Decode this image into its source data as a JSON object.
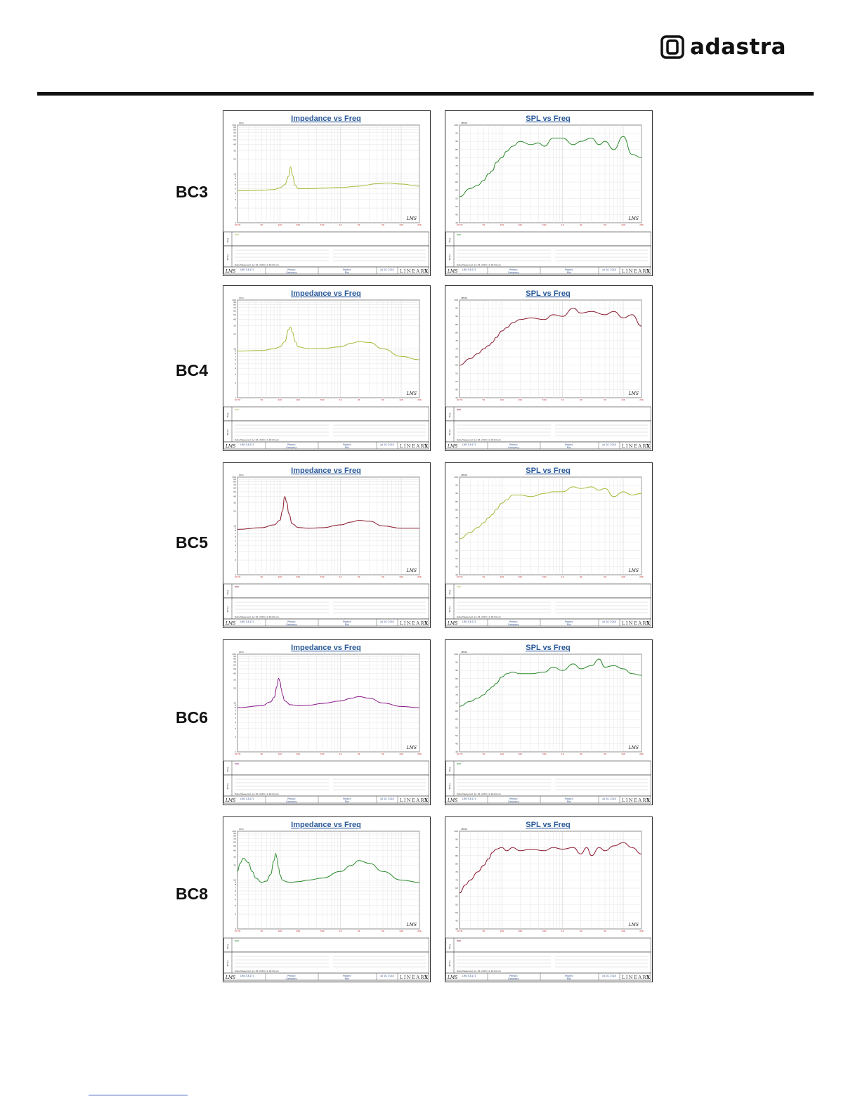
{
  "header": {
    "logo_text": "adastra",
    "brand_color": "#111111"
  },
  "rows": [
    {
      "label": "BC3",
      "top": 0
    },
    {
      "label": "BC4",
      "top": 1
    },
    {
      "label": "BC5",
      "top": 2
    },
    {
      "label": "BC6",
      "top": 3
    },
    {
      "label": "BC8",
      "top": 4
    }
  ],
  "chart_data": [
    {
      "model": "BC3",
      "type": "line",
      "title": "Impedance vs Freq",
      "ylabel": "Ohm",
      "xscale": "log",
      "yscale": "log",
      "xlim": [
        20,
        20000
      ],
      "ylim": [
        1,
        100
      ],
      "color": "#a8b836",
      "x": [
        20,
        50,
        80,
        100,
        120,
        140,
        150,
        160,
        180,
        200,
        300,
        500,
        1000,
        2000,
        4000,
        6000,
        10000,
        20000
      ],
      "y": [
        4.5,
        4.6,
        4.8,
        5.2,
        6.0,
        9.0,
        14.0,
        9.5,
        5.8,
        5.0,
        5.0,
        5.1,
        5.3,
        5.6,
        6.3,
        6.5,
        6.2,
        5.6
      ]
    },
    {
      "model": "BC3",
      "type": "line",
      "title": "SPL vs Freq",
      "ylabel": "dBSPL",
      "xscale": "log",
      "ylim": [
        40,
        100
      ],
      "color": "#2a8a2a",
      "x": [
        20,
        30,
        40,
        50,
        60,
        70,
        80,
        100,
        120,
        150,
        200,
        300,
        400,
        500,
        700,
        1000,
        1500,
        2000,
        3000,
        4000,
        5000,
        7000,
        10000,
        14000,
        20000
      ],
      "y": [
        56,
        61,
        63,
        66,
        70,
        72,
        77,
        80,
        84,
        87,
        90,
        88,
        89,
        87,
        92,
        92,
        88,
        90,
        92,
        88,
        90,
        85,
        93,
        82,
        80
      ]
    },
    {
      "model": "BC4",
      "type": "line",
      "title": "Impedance vs Freq",
      "ylabel": "Ohm",
      "xscale": "log",
      "yscale": "log",
      "xlim": [
        20,
        20000
      ],
      "ylim": [
        1,
        100
      ],
      "color": "#a8b836",
      "x": [
        20,
        50,
        80,
        100,
        120,
        140,
        150,
        160,
        180,
        200,
        300,
        500,
        1000,
        1500,
        2000,
        3000,
        5000,
        10000,
        20000
      ],
      "y": [
        9,
        9.3,
        10,
        11,
        14,
        25,
        28,
        22,
        14,
        11,
        10,
        10.2,
        11,
        13,
        14,
        13.5,
        10,
        7,
        6
      ]
    },
    {
      "model": "BC4",
      "type": "line",
      "title": "SPL vs Freq",
      "ylabel": "dBSPL",
      "xscale": "log",
      "ylim": [
        40,
        100
      ],
      "color": "#8b1a2e",
      "x": [
        20,
        30,
        40,
        50,
        60,
        70,
        80,
        100,
        120,
        150,
        200,
        300,
        500,
        700,
        1000,
        1500,
        2000,
        3000,
        5000,
        7000,
        10000,
        14000,
        20000
      ],
      "y": [
        60,
        64,
        67,
        70,
        72,
        74,
        77,
        81,
        83,
        86,
        88,
        89,
        88,
        91,
        90,
        95,
        92,
        93,
        91,
        93,
        89,
        91,
        84
      ]
    },
    {
      "model": "BC5",
      "type": "line",
      "title": "Impedance vs Freq",
      "ylabel": "Ohm",
      "xscale": "log",
      "yscale": "log",
      "xlim": [
        20,
        20000
      ],
      "ylim": [
        1,
        100
      ],
      "color": "#8b1a2e",
      "x": [
        20,
        50,
        80,
        100,
        110,
        120,
        130,
        140,
        160,
        200,
        300,
        500,
        1000,
        1500,
        2000,
        3000,
        5000,
        10000,
        20000
      ],
      "y": [
        8.5,
        9.2,
        10.5,
        13,
        20,
        40,
        30,
        18,
        11,
        9.3,
        9.0,
        9.2,
        10.5,
        12,
        13,
        12.5,
        10,
        9,
        9
      ]
    },
    {
      "model": "BC5",
      "type": "line",
      "title": "SPL vs Freq",
      "ylabel": "dBSPL",
      "xscale": "log",
      "ylim": [
        40,
        100
      ],
      "color": "#a8b836",
      "x": [
        20,
        30,
        40,
        50,
        60,
        70,
        80,
        100,
        120,
        150,
        200,
        300,
        500,
        700,
        1000,
        1500,
        2000,
        3000,
        4000,
        5000,
        7000,
        10000,
        14000,
        20000
      ],
      "y": [
        62,
        66,
        69,
        72,
        75,
        77,
        80,
        84,
        86,
        89,
        89,
        88,
        90,
        91,
        91,
        94,
        93,
        94,
        92,
        93,
        88,
        91,
        89,
        90
      ]
    },
    {
      "model": "BC6",
      "type": "line",
      "title": "Impedance vs Freq",
      "ylabel": "Ohm",
      "xscale": "log",
      "yscale": "log",
      "xlim": [
        20,
        20000
      ],
      "ylim": [
        1,
        100
      ],
      "color": "#8a1a8a",
      "x": [
        20,
        50,
        70,
        80,
        90,
        95,
        100,
        105,
        110,
        120,
        150,
        200,
        300,
        500,
        1000,
        1500,
        2000,
        3000,
        5000,
        10000,
        20000
      ],
      "y": [
        8.0,
        8.8,
        10.5,
        13,
        22,
        32,
        28,
        20,
        15,
        11,
        9.2,
        8.8,
        9,
        9.8,
        11,
        12.5,
        13.5,
        12.5,
        10,
        8.5,
        8
      ]
    },
    {
      "model": "BC6",
      "type": "line",
      "title": "SPL vs Freq",
      "ylabel": "dBSPL",
      "xscale": "log",
      "ylim": [
        40,
        100
      ],
      "color": "#2a8a2a",
      "x": [
        20,
        30,
        40,
        50,
        60,
        70,
        80,
        100,
        120,
        150,
        200,
        300,
        500,
        700,
        1000,
        1500,
        2000,
        3000,
        4000,
        5000,
        7000,
        10000,
        14000,
        20000
      ],
      "y": [
        68,
        71,
        73,
        75,
        78,
        80,
        82,
        86,
        88,
        89,
        88,
        88,
        89,
        92,
        90,
        94,
        91,
        93,
        97,
        92,
        93,
        91,
        88,
        87
      ]
    },
    {
      "model": "BC8",
      "type": "line",
      "title": "Impedance vs Freq",
      "ylabel": "Ohm",
      "xscale": "log",
      "yscale": "log",
      "xlim": [
        20,
        20000
      ],
      "ylim": [
        1,
        100
      ],
      "color": "#2a8a2a",
      "x": [
        20,
        22,
        25,
        30,
        35,
        40,
        50,
        60,
        70,
        80,
        85,
        90,
        95,
        100,
        110,
        130,
        150,
        200,
        300,
        500,
        1000,
        1500,
        2000,
        3000,
        5000,
        10000,
        20000
      ],
      "y": [
        15,
        22,
        28,
        23,
        15,
        11,
        9,
        9.5,
        13,
        25,
        35,
        28,
        18,
        13,
        10,
        9.2,
        9,
        9.3,
        10,
        11,
        15,
        20,
        25,
        22,
        15,
        10,
        9
      ]
    },
    {
      "model": "BC8",
      "type": "line",
      "title": "SPL vs Freq",
      "ylabel": "dBSPL",
      "xscale": "log",
      "ylim": [
        40,
        100
      ],
      "color": "#8b1a2e",
      "x": [
        20,
        25,
        30,
        40,
        50,
        60,
        70,
        80,
        100,
        120,
        150,
        200,
        300,
        500,
        700,
        1000,
        1500,
        2000,
        2500,
        3000,
        4000,
        5000,
        7000,
        10000,
        14000,
        20000
      ],
      "y": [
        62,
        67,
        70,
        75,
        79,
        83,
        87,
        89,
        90,
        88,
        90,
        88,
        89,
        88,
        90,
        89,
        90,
        86,
        90,
        85,
        90,
        88,
        91,
        93,
        90,
        86
      ]
    }
  ],
  "panel_text": {
    "lms": "LMS",
    "brand": "LINEAR",
    "brand_x": "X",
    "freq_ticks": [
      "20 Hz",
      "50",
      "100",
      "200",
      "500",
      "1K",
      "2K",
      "5K",
      "10K",
      "20K"
    ],
    "ohm_ticks": [
      "100",
      "90",
      "80",
      "70",
      "60",
      "50",
      "40",
      "30",
      "20",
      "10",
      "9",
      "8",
      "7",
      "6",
      "5",
      "4",
      "3",
      "2",
      "1"
    ],
    "spl_ticks": [
      "100",
      "95",
      "90",
      "85",
      "80",
      "75",
      "70",
      "65",
      "60",
      "55",
      "50",
      "45",
      "40"
    ],
    "leg_label": "Mag",
    "notes_label": "Notes",
    "date_line": "Date Measured: Jul 18, 2018 11:18:00 am",
    "footer_a": "LMS 5.8.171",
    "footer_b": "Person:",
    "footer_c": "Company:",
    "footer_d": "Project:",
    "footer_e": "File:",
    "footer_f": "Jul 20, 2018"
  }
}
